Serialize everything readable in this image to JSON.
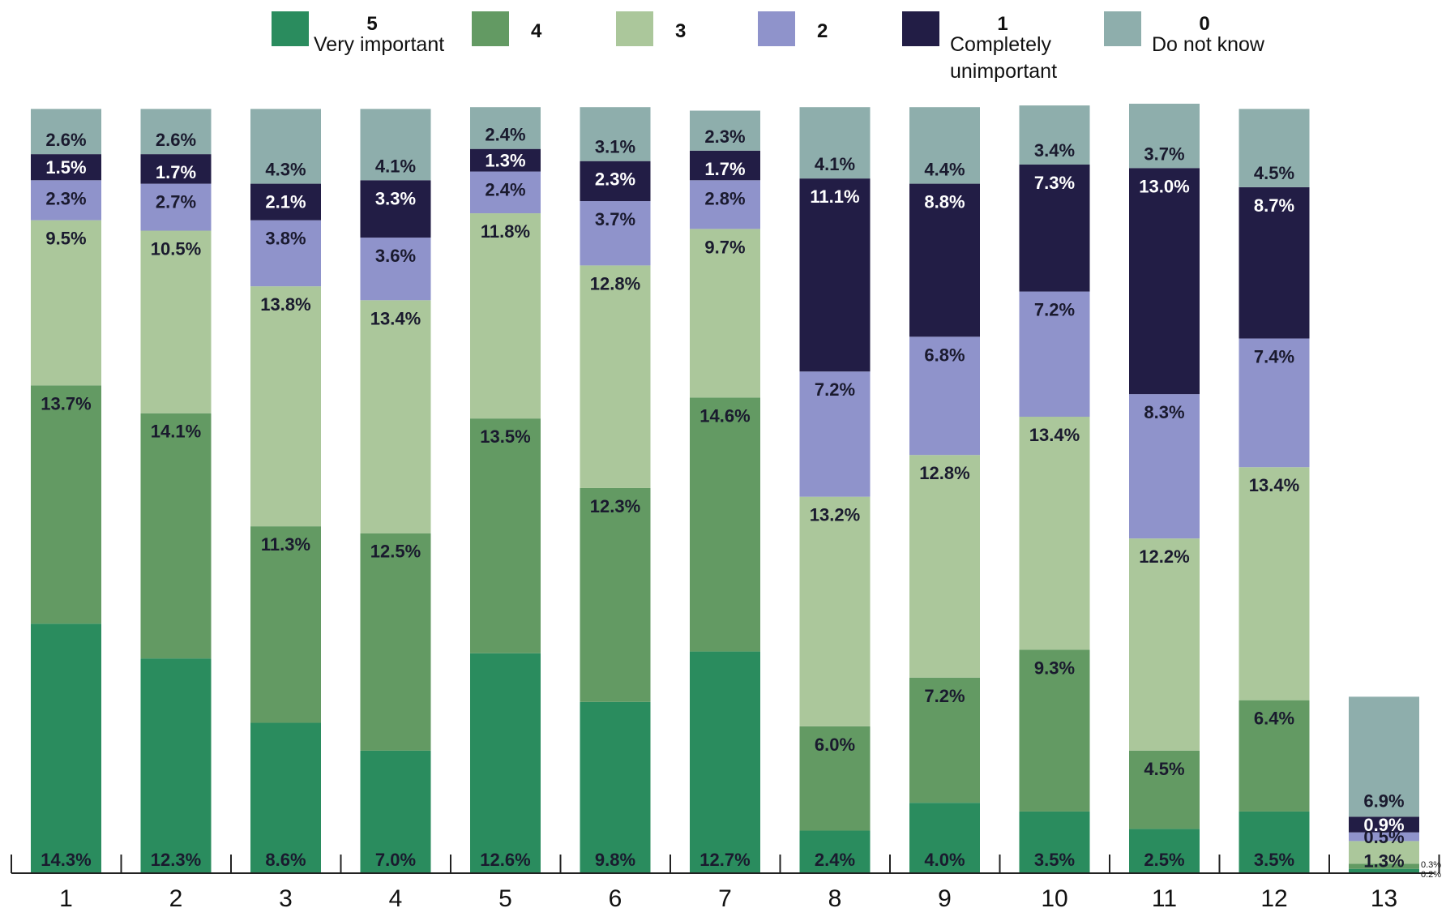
{
  "chart_data": {
    "type": "bar",
    "stacked": true,
    "title": "",
    "xlabel": "",
    "ylabel": "",
    "categories": [
      "1",
      "2",
      "3",
      "4",
      "5",
      "6",
      "7",
      "8",
      "9",
      "10",
      "11",
      "12",
      "13"
    ],
    "series": [
      {
        "key": "5",
        "name": "Very important",
        "color": "#2a8c5e",
        "text_color": "#1a1a2e",
        "values": [
          14.3,
          12.3,
          8.6,
          7.0,
          12.6,
          9.8,
          12.7,
          2.4,
          4.0,
          3.5,
          2.5,
          3.5,
          0.2
        ],
        "labels": [
          "14.3%",
          "12.3%",
          "8.6%",
          "7.0%",
          "12.6%",
          "9.8%",
          "12.7%",
          "2.4%",
          "4.0%",
          "3.5%",
          "2.5%",
          "3.5%",
          "0.2%"
        ]
      },
      {
        "key": "4",
        "name": "",
        "color": "#639a63",
        "text_color": "#1a1a2e",
        "values": [
          13.7,
          14.1,
          11.3,
          12.5,
          13.5,
          12.3,
          14.6,
          6.0,
          7.2,
          9.3,
          4.5,
          6.4,
          0.3
        ],
        "labels": [
          "13.7%",
          "14.1%",
          "11.3%",
          "12.5%",
          "13.5%",
          "12.3%",
          "14.6%",
          "6.0%",
          "7.2%",
          "9.3%",
          "4.5%",
          "6.4%",
          "0.3%"
        ]
      },
      {
        "key": "3",
        "name": "",
        "color": "#abc79b",
        "text_color": "#1a1a2e",
        "values": [
          9.5,
          10.5,
          13.8,
          13.4,
          11.8,
          12.8,
          9.7,
          13.2,
          12.8,
          13.4,
          12.2,
          13.4,
          1.3
        ],
        "labels": [
          "9.5%",
          "10.5%",
          "13.8%",
          "13.4%",
          "11.8%",
          "12.8%",
          "9.7%",
          "13.2%",
          "12.8%",
          "13.4%",
          "12.2%",
          "13.4%",
          "1.3%"
        ]
      },
      {
        "key": "2",
        "name": "",
        "color": "#8f93cb",
        "text_color": "#1a1a2e",
        "values": [
          2.3,
          2.7,
          3.8,
          3.6,
          2.4,
          3.7,
          2.8,
          7.2,
          6.8,
          7.2,
          8.3,
          7.4,
          0.5
        ],
        "labels": [
          "2.3%",
          "2.7%",
          "3.8%",
          "3.6%",
          "2.4%",
          "3.7%",
          "2.8%",
          "7.2%",
          "6.8%",
          "7.2%",
          "8.3%",
          "7.4%",
          "0.5%"
        ]
      },
      {
        "key": "1",
        "name": "Completely unimportant",
        "color": "#221d45",
        "text_color": "#ffffff",
        "values": [
          1.5,
          1.7,
          2.1,
          3.3,
          1.3,
          2.3,
          1.7,
          11.1,
          8.8,
          7.3,
          13.0,
          8.7,
          0.9
        ],
        "labels": [
          "1.5%",
          "1.7%",
          "2.1%",
          "3.3%",
          "1.3%",
          "2.3%",
          "1.7%",
          "11.1%",
          "8.8%",
          "7.3%",
          "13.0%",
          "8.7%",
          "0.9%"
        ]
      },
      {
        "key": "0",
        "name": "Do not know",
        "color": "#8eaeac",
        "text_color": "#1a1a2e",
        "values": [
          2.6,
          2.6,
          4.3,
          4.1,
          2.4,
          3.1,
          2.3,
          4.1,
          4.4,
          3.4,
          3.7,
          4.5,
          6.9
        ],
        "labels": [
          "2.6%",
          "2.6%",
          "4.3%",
          "4.1%",
          "2.4%",
          "3.1%",
          "2.3%",
          "4.1%",
          "4.4%",
          "3.4%",
          "3.7%",
          "4.5%",
          "6.9%"
        ]
      }
    ],
    "legend": [
      {
        "key": "5",
        "lines": [
          "Very important"
        ],
        "color": "#2a8c5e"
      },
      {
        "key": "4",
        "lines": [],
        "color": "#639a63"
      },
      {
        "key": "3",
        "lines": [],
        "color": "#abc79b"
      },
      {
        "key": "2",
        "lines": [],
        "color": "#8f93cb"
      },
      {
        "key": "1",
        "lines": [
          "Completely",
          "unimportant"
        ],
        "color": "#221d45"
      },
      {
        "key": "0",
        "lines": [
          "Do not know"
        ],
        "color": "#8eaeac"
      }
    ],
    "legend_position": "top",
    "ylim": [
      0,
      44
    ],
    "grid": false
  }
}
